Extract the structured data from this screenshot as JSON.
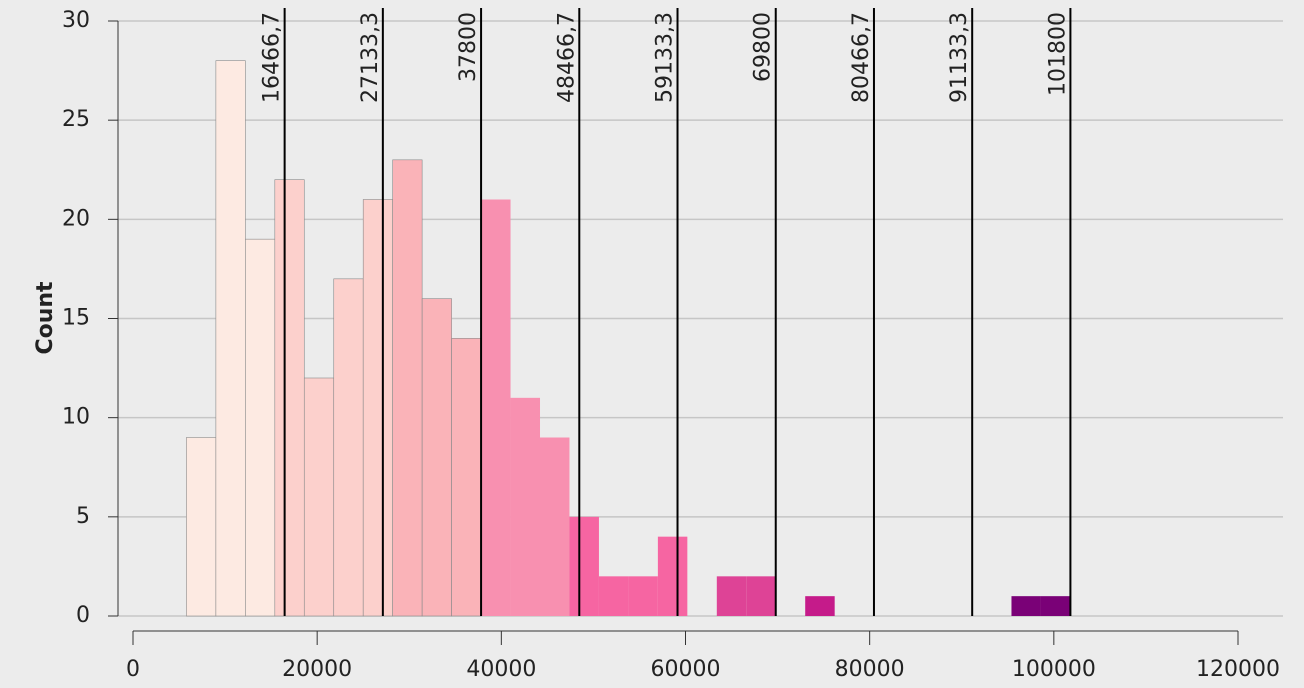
{
  "chart_data": {
    "type": "histogram",
    "ylabel": "Count",
    "bins": [
      5800,
      9000,
      12200,
      15400,
      18600,
      21800,
      25000,
      28200,
      31400,
      34600,
      37800,
      41000,
      44200,
      47400,
      50600,
      53800,
      57000,
      60200,
      63400,
      66600,
      69800,
      73000,
      76200,
      79400,
      82600,
      85800,
      89000,
      92200,
      95400,
      98600,
      101800
    ],
    "counts": [
      9,
      28,
      19,
      22,
      12,
      17,
      21,
      23,
      16,
      14,
      21,
      11,
      9,
      5,
      2,
      2,
      4,
      0,
      2,
      2,
      0,
      1,
      0,
      0,
      0,
      0,
      0,
      0,
      1,
      1
    ],
    "colors": [
      "#fdeae2",
      "#fdeae2",
      "#fdeae2",
      "#fcd0cc",
      "#fcd0cc",
      "#fcd0cc",
      "#fcd0cc",
      "#fab3b8",
      "#fab3b8",
      "#fab3b8",
      "#f890b0",
      "#f890b0",
      "#f890b0",
      "#f665a2",
      "#f665a2",
      "#f665a2",
      "#f665a2",
      "#de4396",
      "#de4396",
      "#de4396",
      "#c51b8a",
      "#c51b8a",
      "#c51b8a",
      "#c51b8a",
      "#c51b8a",
      "#c51b8a",
      "#c51b8a",
      "#c51b8a",
      "#7a0177",
      "#7a0177"
    ],
    "thresholds": [
      {
        "value": 16466.7,
        "label": "16466,7"
      },
      {
        "value": 27133.3,
        "label": "27133,3"
      },
      37800,
      {
        "value": 48466.7,
        "label": "48466,7"
      },
      {
        "value": 59133.3,
        "label": "59133,3"
      },
      69800,
      {
        "value": 80466.7,
        "label": "80466,7"
      },
      {
        "value": 91133.3,
        "label": "91133,3"
      },
      101800
    ],
    "xlim": [
      0,
      120000
    ],
    "xticks": [
      0,
      20000,
      40000,
      60000,
      80000,
      100000,
      120000
    ],
    "ylim": [
      0,
      30
    ],
    "yticks": [
      0,
      5,
      10,
      15,
      20,
      25,
      30
    ],
    "grid": true
  }
}
